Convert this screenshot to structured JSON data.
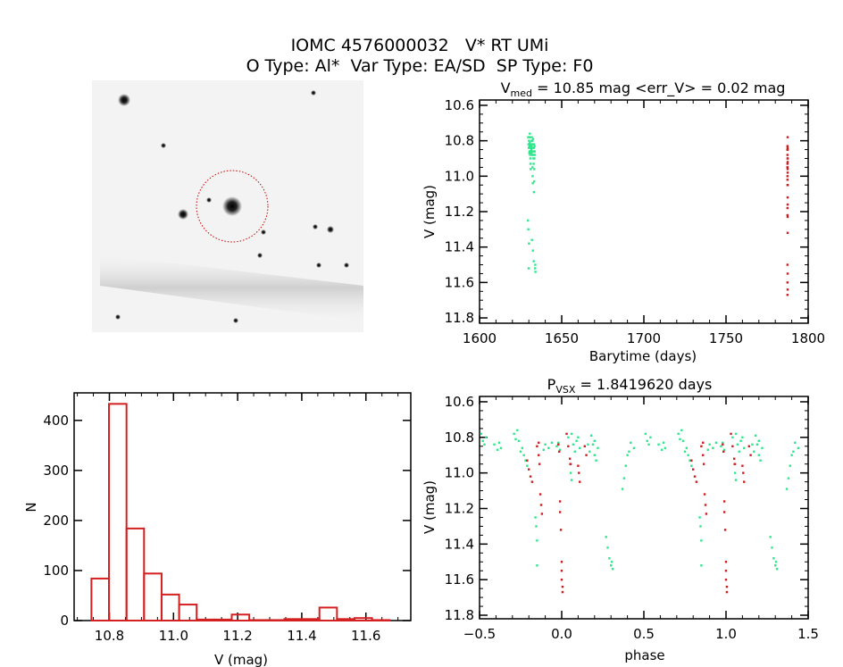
{
  "header": {
    "title": "IOMC 4576000032   V* RT UMi",
    "subtitle": "O Type: Al*  Var Type: EA/SD  SP Type: F0"
  },
  "colors": {
    "series_a": "#2ee68c",
    "series_b": "#d01c1c",
    "histogram": "#d42020",
    "axes": "#000000"
  },
  "chart_data": [
    {
      "id": "lightcurve",
      "type": "scatter",
      "title_main": "V",
      "title_sub": "med",
      "title_rest": " = 10.85 mag <err_V> = 0.02 mag",
      "xlabel": "Barytime (days)",
      "ylabel": "V (mag)",
      "xlim": [
        1600,
        1800
      ],
      "ylim": [
        10.57,
        11.83
      ],
      "y_inverted": true,
      "xticks": [
        "1600",
        "1650",
        "1700",
        "1750",
        "1800"
      ],
      "yticks": [
        "10.6",
        "10.8",
        "11.0",
        "11.2",
        "11.4",
        "11.6",
        "11.8"
      ]
    },
    {
      "id": "phased",
      "type": "scatter",
      "title_main": "P",
      "title_sub": "VSX",
      "title_rest": " = 1.8419620 days",
      "xlabel": "phase",
      "ylabel": "V (mag)",
      "xlim": [
        -0.5,
        1.5
      ],
      "ylim": [
        10.57,
        11.82
      ],
      "y_inverted": true,
      "xticks": [
        "-0.5",
        "0.0",
        "0.5",
        "1.0",
        "1.5"
      ],
      "yticks": [
        "10.6",
        "10.8",
        "11.0",
        "11.2",
        "11.4",
        "11.6",
        "11.8"
      ]
    },
    {
      "id": "histogram",
      "type": "bar",
      "xlabel": "V (mag)",
      "ylabel": "N",
      "xlim": [
        10.69,
        11.74
      ],
      "ylim": [
        0,
        455
      ],
      "bin_start": 10.744,
      "bin_width": 0.0547,
      "values": [
        84,
        433,
        184,
        94,
        52,
        32,
        2,
        2,
        12,
        1,
        1,
        3,
        3,
        26,
        3,
        5,
        1
      ],
      "xticks": [
        "10.8",
        "11.0",
        "11.2",
        "11.4",
        "11.6"
      ],
      "yticks": [
        "0",
        "100",
        "200",
        "300",
        "400"
      ]
    }
  ],
  "observations": {
    "columns": [
      "barytime",
      "phase",
      "V"
    ],
    "series_a": [
      [
        1629.6,
        -0.49,
        10.78
      ],
      [
        1629.8,
        -0.48,
        10.82
      ],
      [
        1630.0,
        -0.47,
        10.84
      ],
      [
        1630.1,
        -0.46,
        10.8
      ],
      [
        1630.2,
        -0.41,
        10.84
      ],
      [
        1630.3,
        -0.39,
        10.87
      ],
      [
        1630.4,
        -0.38,
        10.83
      ],
      [
        1630.45,
        -0.37,
        10.86
      ],
      [
        1630.5,
        -0.29,
        10.78
      ],
      [
        1630.6,
        -0.27,
        10.76
      ],
      [
        1630.65,
        -0.28,
        10.81
      ],
      [
        1630.7,
        -0.26,
        10.82
      ],
      [
        1630.8,
        -0.25,
        10.88
      ],
      [
        1630.9,
        -0.23,
        10.9
      ],
      [
        1631.0,
        -0.22,
        10.93
      ],
      [
        1631.1,
        -0.21,
        10.96
      ],
      [
        1631.15,
        -0.24,
        10.86
      ],
      [
        1631.2,
        -0.1,
        10.84
      ],
      [
        1631.3,
        -0.08,
        10.86
      ],
      [
        1631.4,
        -0.06,
        10.83
      ],
      [
        1631.45,
        -0.11,
        10.87
      ],
      [
        1631.5,
        -0.03,
        10.85
      ],
      [
        1631.6,
        -0.01,
        10.87
      ],
      [
        1631.65,
        -0.02,
        10.83
      ],
      [
        1631.7,
        0.04,
        10.8
      ],
      [
        1631.8,
        0.06,
        10.78
      ],
      [
        1631.9,
        0.07,
        10.84
      ],
      [
        1632.0,
        0.09,
        10.82
      ],
      [
        1632.1,
        0.11,
        10.86
      ],
      [
        1632.15,
        0.08,
        10.88
      ],
      [
        1632.18,
        0.1,
        10.8
      ],
      [
        1632.2,
        0.05,
        10.95
      ],
      [
        1632.3,
        0.055,
        11.0
      ],
      [
        1632.4,
        0.06,
        11.04
      ],
      [
        1632.5,
        0.17,
        10.88
      ],
      [
        1632.6,
        0.18,
        10.79
      ],
      [
        1632.7,
        0.19,
        10.84
      ],
      [
        1632.8,
        0.2,
        10.9
      ],
      [
        1632.9,
        0.21,
        10.93
      ],
      [
        1633.0,
        0.22,
        10.86
      ],
      [
        1633.05,
        0.16,
        10.84
      ],
      [
        1633.08,
        0.2,
        10.82
      ],
      [
        1633.1,
        0.37,
        11.09
      ],
      [
        1633.2,
        0.38,
        11.03
      ],
      [
        1633.3,
        0.39,
        10.96
      ],
      [
        1633.4,
        0.4,
        10.9
      ],
      [
        1633.5,
        0.42,
        10.83
      ],
      [
        1633.6,
        0.44,
        10.86
      ],
      [
        1633.7,
        0.41,
        10.88
      ],
      [
        1629.5,
        -0.16,
        11.25
      ],
      [
        1629.7,
        -0.155,
        11.3
      ],
      [
        1630.1,
        -0.15,
        11.38
      ],
      [
        1629.9,
        -0.15,
        11.52
      ],
      [
        1631.9,
        0.27,
        11.36
      ],
      [
        1632.5,
        0.28,
        11.42
      ],
      [
        1633.0,
        0.29,
        11.48
      ],
      [
        1633.8,
        0.3,
        11.52
      ],
      [
        1634.0,
        0.31,
        11.54
      ],
      [
        1633.9,
        0.305,
        11.5
      ]
    ],
    "series_b": [
      [
        1787.4,
        -0.21,
        10.93
      ],
      [
        1787.5,
        -0.2,
        10.98
      ],
      [
        1787.4,
        -0.19,
        11.02
      ],
      [
        1787.5,
        -0.18,
        11.05
      ],
      [
        1787.5,
        -0.15,
        10.85
      ],
      [
        1787.4,
        -0.14,
        10.83
      ],
      [
        1787.5,
        -0.14,
        10.9
      ],
      [
        1787.4,
        -0.135,
        10.95
      ],
      [
        1787.5,
        -0.13,
        11.12
      ],
      [
        1787.4,
        -0.125,
        11.18
      ],
      [
        1787.5,
        -0.12,
        11.23
      ],
      [
        1787.5,
        -0.02,
        10.84
      ],
      [
        1787.4,
        -0.015,
        10.88
      ],
      [
        1787.5,
        -0.01,
        11.16
      ],
      [
        1787.4,
        -0.01,
        11.22
      ],
      [
        1787.5,
        -0.005,
        11.32
      ],
      [
        1787.4,
        0.0,
        11.5
      ],
      [
        1787.5,
        0.0,
        11.55
      ],
      [
        1787.4,
        0.0,
        11.6
      ],
      [
        1787.5,
        0.005,
        11.64
      ],
      [
        1787.4,
        0.005,
        11.67
      ],
      [
        1787.5,
        0.03,
        10.78
      ],
      [
        1787.4,
        0.04,
        10.85
      ],
      [
        1787.5,
        0.05,
        10.92
      ],
      [
        1787.4,
        0.055,
        10.95
      ],
      [
        1787.5,
        0.1,
        10.96
      ],
      [
        1787.4,
        0.105,
        11.0
      ],
      [
        1787.5,
        0.11,
        11.05
      ],
      [
        1787.4,
        0.14,
        10.85
      ],
      [
        1787.5,
        0.15,
        10.9
      ]
    ]
  }
}
